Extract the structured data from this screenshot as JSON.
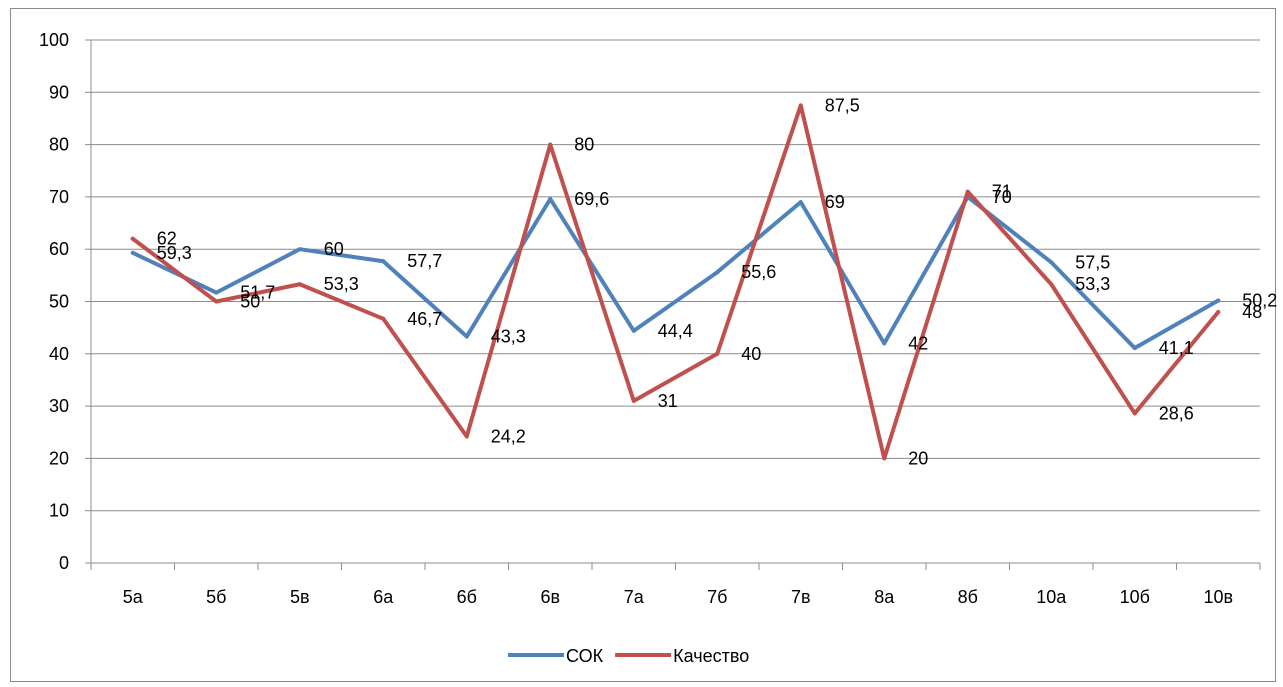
{
  "chart_data": {
    "type": "line",
    "categories": [
      "5а",
      "5б",
      "5в",
      "6а",
      "6б",
      "6в",
      "7а",
      "7б",
      "7в",
      "8а",
      "8б",
      "10а",
      "10б",
      "10в"
    ],
    "series": [
      {
        "name": "СОК",
        "color": "#4F81BD",
        "values": [
          59.3,
          51.7,
          60,
          57.7,
          43.3,
          69.6,
          44.4,
          55.6,
          69,
          42,
          70,
          57.5,
          41.1,
          50.2
        ],
        "labels": [
          "59,3",
          "51,7",
          "60",
          "57,7",
          "43,3",
          "69,6",
          "44,4",
          "55,6",
          "69",
          "42",
          "70",
          "57,5",
          "41,1",
          "50,2"
        ]
      },
      {
        "name": "Качество",
        "color": "#C0504D",
        "values": [
          62,
          50,
          53.3,
          46.7,
          24.2,
          80,
          31,
          40,
          87.5,
          20,
          71,
          53.3,
          28.6,
          48
        ],
        "labels": [
          "62",
          "50",
          "53,3",
          "46,7",
          "24,2",
          "80",
          "31",
          "40",
          "87,5",
          "20",
          "71",
          "53,3",
          "28,6",
          "48"
        ]
      }
    ],
    "y_ticks": [
      "0",
      "10",
      "20",
      "30",
      "40",
      "50",
      "60",
      "70",
      "80",
      "90",
      "100"
    ],
    "ylim": [
      0,
      100
    ],
    "grid": true,
    "legend": "bottom"
  }
}
